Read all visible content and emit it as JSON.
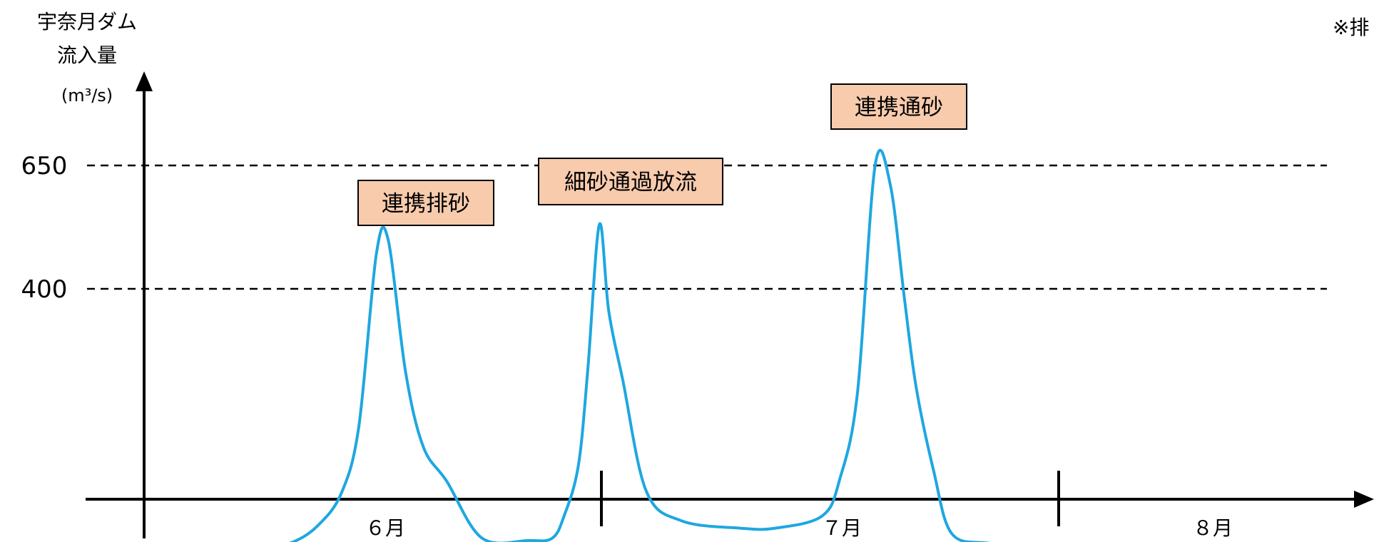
{
  "chart_data": {
    "type": "line",
    "ylabel_lines": [
      "宇奈月ダム",
      "流入量"
    ],
    "yunit": "(m³/s)",
    "yticks": [
      650,
      400
    ],
    "threshold_lines": [
      650,
      400
    ],
    "months": [
      "６月",
      "７月",
      "８月"
    ],
    "series": [
      {
        "color": "#1ea7e0",
        "x": [
          0.0,
          0.5,
          1.0,
          1.2,
          1.4,
          1.6,
          1.75,
          1.9,
          2.0,
          2.15,
          2.3,
          2.5,
          2.8,
          3.2,
          3.4,
          3.5,
          3.62,
          3.7,
          3.8,
          3.88,
          4.0,
          4.2,
          4.5,
          5.0,
          5.3,
          5.7,
          5.85,
          6.0,
          6.15,
          6.28,
          6.4,
          6.5,
          6.65,
          6.8,
          7.1,
          7.5,
          8.0,
          8.5,
          9.0,
          10.0
        ],
        "y": [
          -120,
          -120,
          -120,
          -112,
          -80,
          -15,
          120,
          470,
          500,
          230,
          80,
          10,
          -105,
          -110,
          -105,
          -60,
          40,
          230,
          530,
          355,
          215,
          -10,
          -70,
          -85,
          -85,
          -60,
          15,
          190,
          650,
          610,
          380,
          200,
          30,
          -95,
          -115,
          -117,
          -117,
          -117,
          -117,
          -117
        ]
      }
    ],
    "annotations": [
      {
        "text": "連携排砂"
      },
      {
        "text": "細砂通過放流"
      },
      {
        "text": "連携通砂"
      }
    ],
    "note": "※排"
  }
}
